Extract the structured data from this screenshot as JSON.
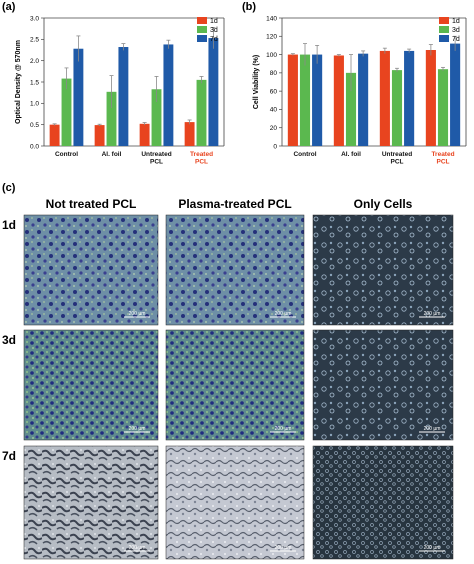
{
  "chart_data": [
    {
      "panel": "(a)",
      "type": "bar",
      "ylabel": "Optical Density @ 570nm",
      "ylim": [
        0,
        3.0
      ],
      "yticks": [
        "0.0",
        "0.5",
        "1.0",
        "1.5",
        "2.0",
        "2.5",
        "3.0"
      ],
      "categories": [
        "Control",
        "Al. foil",
        "Untreated\nPCL",
        "Treated\nPCL"
      ],
      "series": [
        {
          "name": "1d",
          "color": "#e8441f",
          "values": [
            0.5,
            0.49,
            0.52,
            0.56
          ],
          "errors": [
            0.02,
            0.02,
            0.03,
            0.05
          ]
        },
        {
          "name": "3d",
          "color": "#5bb84f",
          "values": [
            1.58,
            1.27,
            1.33,
            1.55
          ],
          "errors": [
            0.25,
            0.38,
            0.3,
            0.08
          ]
        },
        {
          "name": "7d",
          "color": "#1f5aa8",
          "values": [
            2.28,
            2.32,
            2.38,
            2.53
          ],
          "errors": [
            0.3,
            0.08,
            0.1,
            0.25
          ]
        }
      ],
      "highlight_category": "Treated\nPCL",
      "highlight_color": "#e8441f",
      "legend": "top-right"
    },
    {
      "panel": "(b)",
      "type": "bar",
      "ylabel": "Cell Viability (%)",
      "ylim": [
        0,
        140
      ],
      "yticks": [
        "0",
        "20",
        "40",
        "60",
        "80",
        "100",
        "120",
        "140"
      ],
      "categories": [
        "Control",
        "Al. foil",
        "Untreated\nPCL",
        "Treated\nPCL"
      ],
      "series": [
        {
          "name": "1d",
          "color": "#e8441f",
          "values": [
            100,
            99,
            104,
            105
          ],
          "errors": [
            1,
            1,
            3,
            6
          ]
        },
        {
          "name": "3d",
          "color": "#5bb84f",
          "values": [
            100,
            80,
            83,
            84
          ],
          "errors": [
            12,
            20,
            2,
            2
          ]
        },
        {
          "name": "7d",
          "color": "#1f5aa8",
          "values": [
            100,
            101,
            104,
            112
          ],
          "errors": [
            10,
            3,
            2,
            8
          ]
        }
      ],
      "highlight_category": "Treated\nPCL",
      "highlight_color": "#e8441f",
      "legend": "top-right"
    }
  ],
  "micrograph": {
    "panel": "(c)",
    "columns": [
      "Not treated PCL",
      "Plasma-treated PCL",
      "Only Cells"
    ],
    "rows": [
      "1d",
      "3d",
      "7d"
    ],
    "scale_bar": "200 µm"
  }
}
